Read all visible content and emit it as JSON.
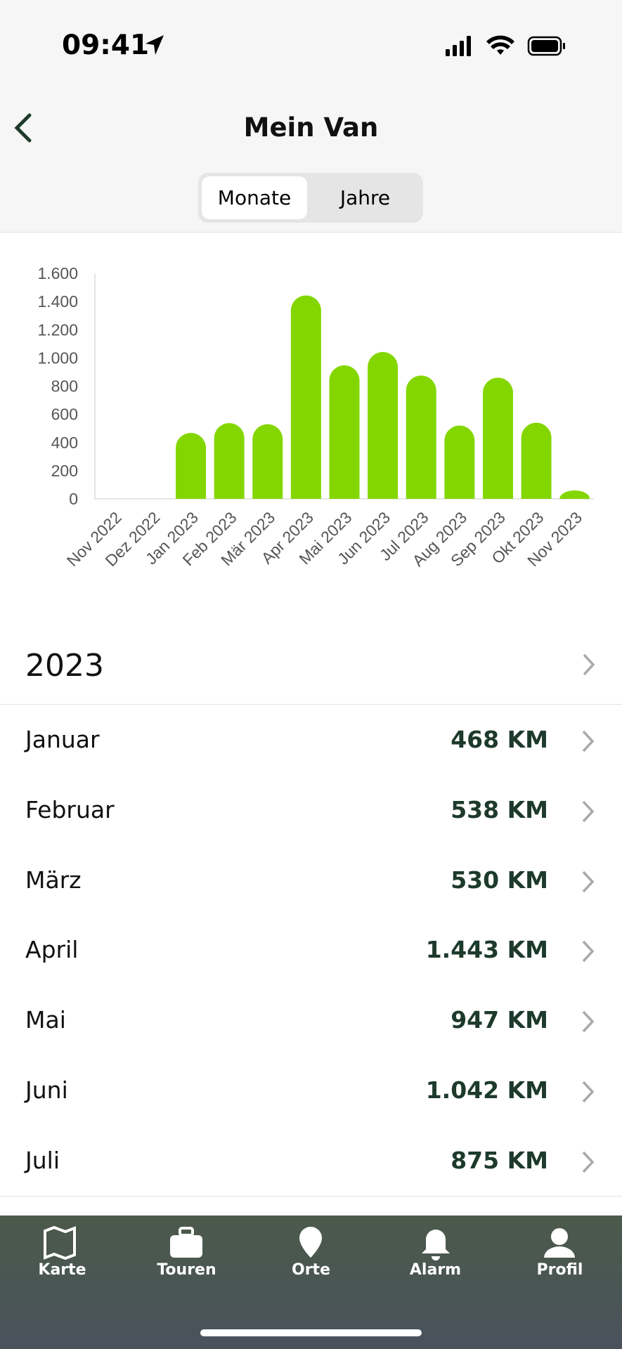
{
  "status_bar": {
    "time": "09:41"
  },
  "header": {
    "title": "Mein Van"
  },
  "segmented_control": {
    "options": [
      "Monate",
      "Jahre"
    ],
    "selected": 0
  },
  "chart_data": {
    "type": "bar",
    "color": "#84d600",
    "categories": [
      "Nov 2022",
      "Dez 2022",
      "Jan 2023",
      "Feb 2023",
      "Mär 2023",
      "Apr 2023",
      "Mai 2023",
      "Jun 2023",
      "Jul 2023",
      "Aug 2023",
      "Sep 2023",
      "Okt 2023",
      "Nov 2023"
    ],
    "values": [
      0,
      0,
      468,
      538,
      530,
      1443,
      947,
      1042,
      875,
      520,
      860,
      540,
      60
    ],
    "ylim": [
      0,
      1600
    ],
    "yticks": [
      0,
      200,
      400,
      600,
      800,
      {
        "value": 1000,
        "label": "1.000"
      },
      {
        "value": 1200,
        "label": "1.200"
      },
      {
        "value": 1400,
        "label": "1.400"
      },
      {
        "value": 1600,
        "label": "1.600"
      }
    ]
  },
  "list": {
    "year": "2023",
    "rows": [
      [
        "Januar",
        "468 KM"
      ],
      [
        "Februar",
        "538 KM"
      ],
      [
        "März",
        "530 KM"
      ],
      [
        "April",
        "1.443 KM"
      ],
      [
        "Mai",
        "947 KM"
      ],
      [
        "Juni",
        "1.042 KM"
      ],
      [
        "Juli",
        "875 KM"
      ]
    ]
  },
  "tab_bar": [
    "Karte",
    "Touren",
    "Orte",
    "Alarm",
    "Profil"
  ]
}
